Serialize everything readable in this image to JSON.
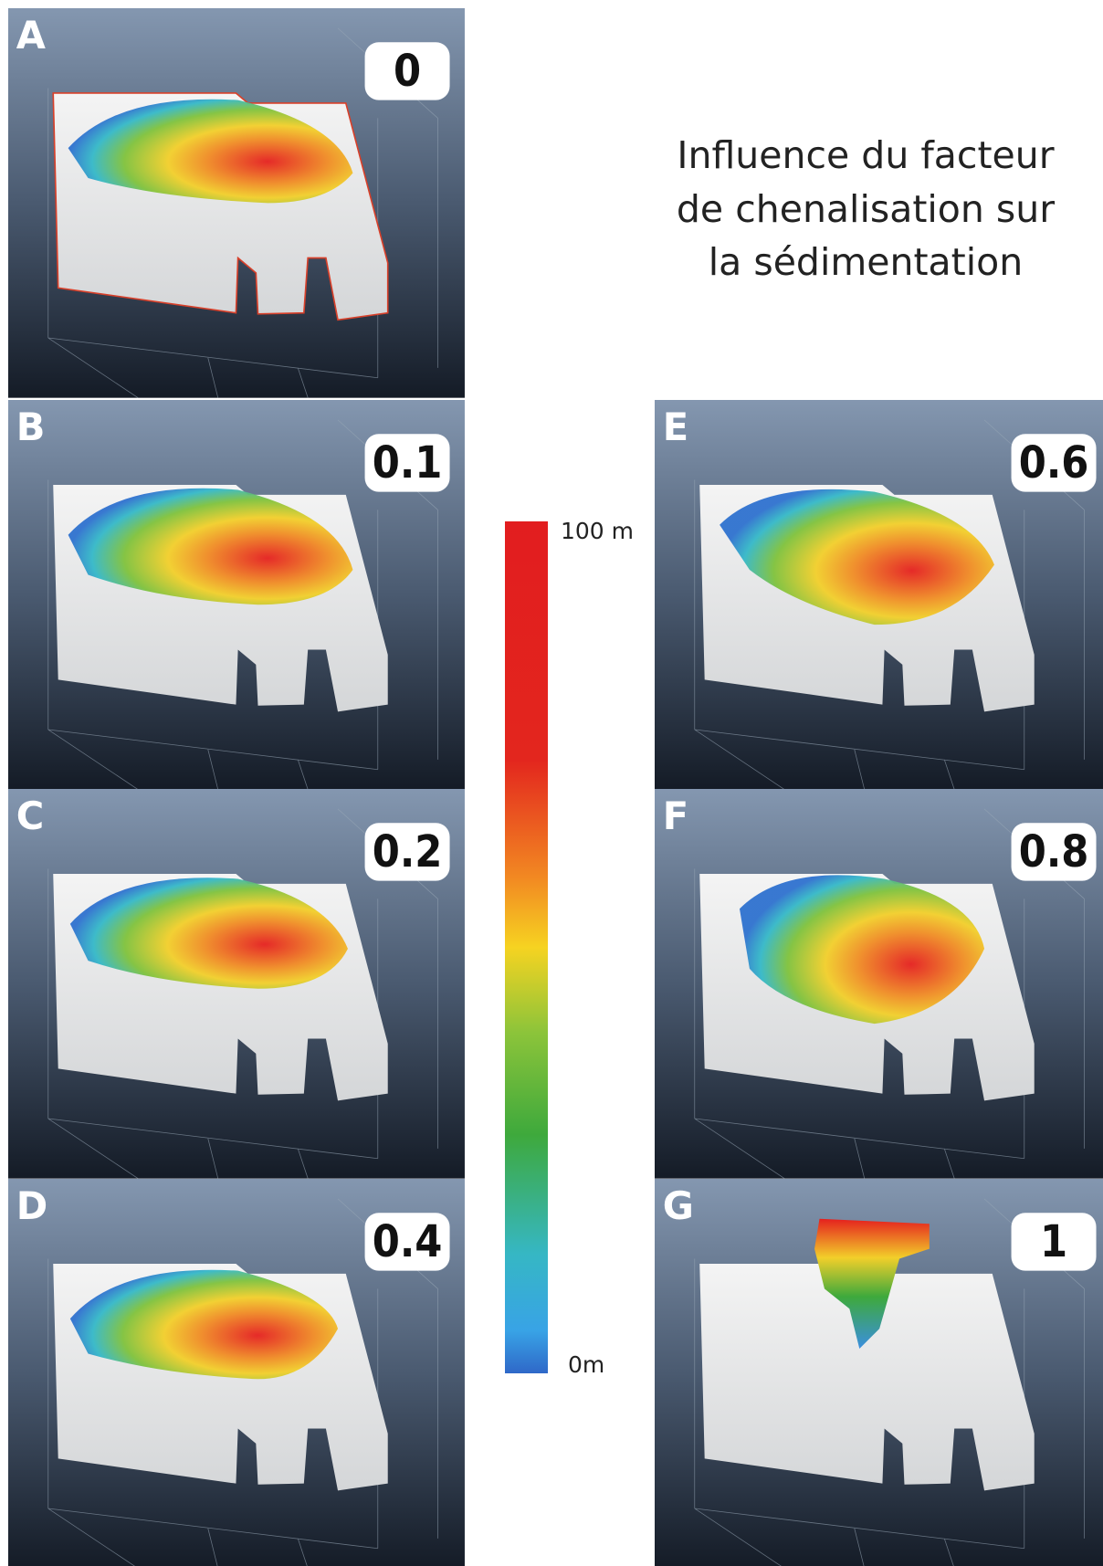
{
  "title": {
    "lines": [
      "Influence du facteur",
      "de chenalisation sur",
      "la sédimentation"
    ]
  },
  "colorbar": {
    "top_label": "100 m",
    "bottom_label": "0m"
  },
  "panels": [
    {
      "letter": "A",
      "value": "0"
    },
    {
      "letter": "B",
      "value": "0.1"
    },
    {
      "letter": "C",
      "value": "0.2"
    },
    {
      "letter": "D",
      "value": "0.4"
    },
    {
      "letter": "E",
      "value": "0.6"
    },
    {
      "letter": "F",
      "value": "0.8"
    },
    {
      "letter": "G",
      "value": "1"
    }
  ]
}
